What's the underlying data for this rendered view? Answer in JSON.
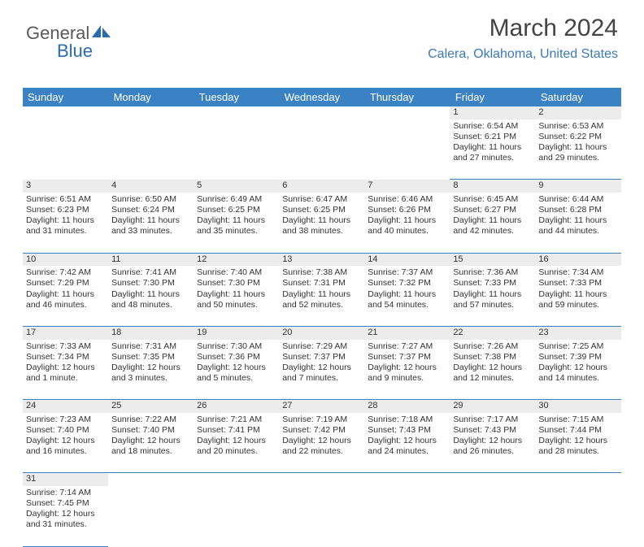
{
  "logo": {
    "part1": "General",
    "part2": "Blue"
  },
  "title": "March 2024",
  "location": "Calera, Oklahoma, United States",
  "colors": {
    "header_bg": "#3b82c4",
    "header_text": "#ffffff",
    "daynum_bg": "#ececec",
    "cell_border": "#3b82c4",
    "location_color": "#3a7ab8",
    "logo_gray": "#5a5a5a",
    "logo_blue": "#2b6cb0"
  },
  "typography": {
    "title_fontsize": 30,
    "location_fontsize": 16,
    "dayheader_fontsize": 13,
    "cell_fontsize": 10.5
  },
  "day_headers": [
    "Sunday",
    "Monday",
    "Tuesday",
    "Wednesday",
    "Thursday",
    "Friday",
    "Saturday"
  ],
  "weeks": [
    [
      null,
      null,
      null,
      null,
      null,
      {
        "n": "1",
        "sr": "6:54 AM",
        "ss": "6:21 PM",
        "dl": "11 hours and 27 minutes."
      },
      {
        "n": "2",
        "sr": "6:53 AM",
        "ss": "6:22 PM",
        "dl": "11 hours and 29 minutes."
      }
    ],
    [
      {
        "n": "3",
        "sr": "6:51 AM",
        "ss": "6:23 PM",
        "dl": "11 hours and 31 minutes."
      },
      {
        "n": "4",
        "sr": "6:50 AM",
        "ss": "6:24 PM",
        "dl": "11 hours and 33 minutes."
      },
      {
        "n": "5",
        "sr": "6:49 AM",
        "ss": "6:25 PM",
        "dl": "11 hours and 35 minutes."
      },
      {
        "n": "6",
        "sr": "6:47 AM",
        "ss": "6:25 PM",
        "dl": "11 hours and 38 minutes."
      },
      {
        "n": "7",
        "sr": "6:46 AM",
        "ss": "6:26 PM",
        "dl": "11 hours and 40 minutes."
      },
      {
        "n": "8",
        "sr": "6:45 AM",
        "ss": "6:27 PM",
        "dl": "11 hours and 42 minutes."
      },
      {
        "n": "9",
        "sr": "6:44 AM",
        "ss": "6:28 PM",
        "dl": "11 hours and 44 minutes."
      }
    ],
    [
      {
        "n": "10",
        "sr": "7:42 AM",
        "ss": "7:29 PM",
        "dl": "11 hours and 46 minutes."
      },
      {
        "n": "11",
        "sr": "7:41 AM",
        "ss": "7:30 PM",
        "dl": "11 hours and 48 minutes."
      },
      {
        "n": "12",
        "sr": "7:40 AM",
        "ss": "7:30 PM",
        "dl": "11 hours and 50 minutes."
      },
      {
        "n": "13",
        "sr": "7:38 AM",
        "ss": "7:31 PM",
        "dl": "11 hours and 52 minutes."
      },
      {
        "n": "14",
        "sr": "7:37 AM",
        "ss": "7:32 PM",
        "dl": "11 hours and 54 minutes."
      },
      {
        "n": "15",
        "sr": "7:36 AM",
        "ss": "7:33 PM",
        "dl": "11 hours and 57 minutes."
      },
      {
        "n": "16",
        "sr": "7:34 AM",
        "ss": "7:33 PM",
        "dl": "11 hours and 59 minutes."
      }
    ],
    [
      {
        "n": "17",
        "sr": "7:33 AM",
        "ss": "7:34 PM",
        "dl": "12 hours and 1 minute."
      },
      {
        "n": "18",
        "sr": "7:31 AM",
        "ss": "7:35 PM",
        "dl": "12 hours and 3 minutes."
      },
      {
        "n": "19",
        "sr": "7:30 AM",
        "ss": "7:36 PM",
        "dl": "12 hours and 5 minutes."
      },
      {
        "n": "20",
        "sr": "7:29 AM",
        "ss": "7:37 PM",
        "dl": "12 hours and 7 minutes."
      },
      {
        "n": "21",
        "sr": "7:27 AM",
        "ss": "7:37 PM",
        "dl": "12 hours and 9 minutes."
      },
      {
        "n": "22",
        "sr": "7:26 AM",
        "ss": "7:38 PM",
        "dl": "12 hours and 12 minutes."
      },
      {
        "n": "23",
        "sr": "7:25 AM",
        "ss": "7:39 PM",
        "dl": "12 hours and 14 minutes."
      }
    ],
    [
      {
        "n": "24",
        "sr": "7:23 AM",
        "ss": "7:40 PM",
        "dl": "12 hours and 16 minutes."
      },
      {
        "n": "25",
        "sr": "7:22 AM",
        "ss": "7:40 PM",
        "dl": "12 hours and 18 minutes."
      },
      {
        "n": "26",
        "sr": "7:21 AM",
        "ss": "7:41 PM",
        "dl": "12 hours and 20 minutes."
      },
      {
        "n": "27",
        "sr": "7:19 AM",
        "ss": "7:42 PM",
        "dl": "12 hours and 22 minutes."
      },
      {
        "n": "28",
        "sr": "7:18 AM",
        "ss": "7:43 PM",
        "dl": "12 hours and 24 minutes."
      },
      {
        "n": "29",
        "sr": "7:17 AM",
        "ss": "7:43 PM",
        "dl": "12 hours and 26 minutes."
      },
      {
        "n": "30",
        "sr": "7:15 AM",
        "ss": "7:44 PM",
        "dl": "12 hours and 28 minutes."
      }
    ],
    [
      {
        "n": "31",
        "sr": "7:14 AM",
        "ss": "7:45 PM",
        "dl": "12 hours and 31 minutes."
      },
      null,
      null,
      null,
      null,
      null,
      null
    ]
  ],
  "labels": {
    "sunrise": "Sunrise:",
    "sunset": "Sunset:",
    "daylight": "Daylight:"
  }
}
